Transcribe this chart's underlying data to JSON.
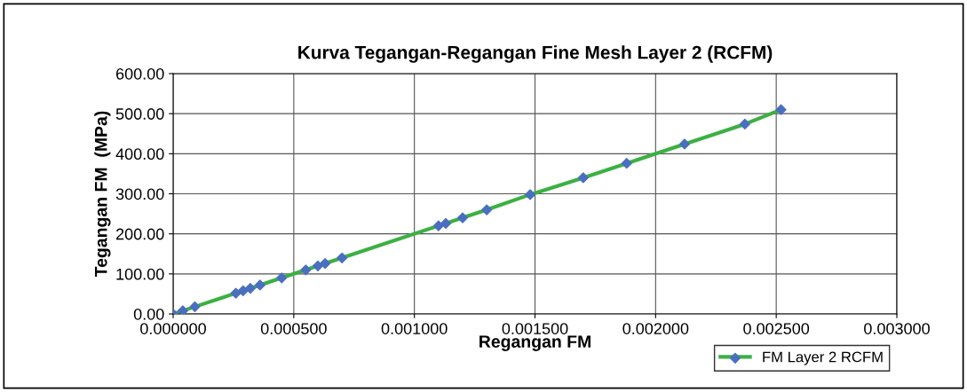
{
  "chart_data": {
    "type": "line",
    "title": "Kurva Tegangan-Regangan Fine Mesh Layer 2 (RCFM)",
    "xlabel": "Regangan FM",
    "ylabel": "Tegangan FM  (MPa)",
    "x": [
      0,
      4e-05,
      9e-05,
      0.00026,
      0.00029,
      0.00032,
      0.00036,
      0.00045,
      0.00055,
      0.0006,
      0.00063,
      0.0007,
      0.0011,
      0.00113,
      0.0012,
      0.0013,
      0.00148,
      0.0017,
      0.00188,
      0.00212,
      0.00237,
      0.00252
    ],
    "series": [
      {
        "name": "FM Layer 2 RCFM",
        "color": "#3cb043",
        "colors": [
          "#4a6fbf",
          "#4a6fbf",
          "#4a6fbf",
          "#4a6fbf",
          "#4a6fbf",
          "#4a6fbf",
          "#4a6fbf",
          "#4a6fbf",
          "#4a6fbf",
          "#4a6fbf",
          "#4a6fbf",
          "#4a6fbf",
          "#4a6fbf",
          "#4a6fbf",
          "#4a6fbf",
          "#4a6fbf",
          "#4a6fbf",
          "#4a6fbf",
          "#4a6fbf",
          "#4a6fbf",
          "#4a6fbf",
          "#4a6fbf"
        ],
        "values": [
          0,
          8,
          18,
          52,
          58,
          64,
          72,
          90,
          110,
          120,
          126,
          140,
          220,
          226,
          240,
          260,
          298,
          340,
          376,
          424,
          474,
          510
        ]
      }
    ],
    "xlim": [
      0,
      0.003
    ],
    "ylim": [
      0,
      600
    ],
    "xticks": [
      {
        "value": 0,
        "label": "0.000000"
      },
      {
        "value": 0.0005,
        "label": "0.000500"
      },
      {
        "value": 0.001,
        "label": "0.001000"
      },
      {
        "value": 0.0015,
        "label": "0.001500"
      },
      {
        "value": 0.002,
        "label": "0.002000"
      },
      {
        "value": 0.0025,
        "label": "0.002500"
      },
      {
        "value": 0.003,
        "label": "0.003000"
      }
    ],
    "yticks": [
      {
        "value": 0,
        "label": "0.00"
      },
      {
        "value": 100,
        "label": "100.00"
      },
      {
        "value": 200,
        "label": "200.00"
      },
      {
        "value": 300,
        "label": "300.00"
      },
      {
        "value": 400,
        "label": "400.00"
      },
      {
        "value": 500,
        "label": "500.00"
      },
      {
        "value": 600,
        "label": "600.00"
      }
    ],
    "grid": true,
    "legend": "bottom right",
    "marker": "diamond",
    "line_style": "solid"
  }
}
